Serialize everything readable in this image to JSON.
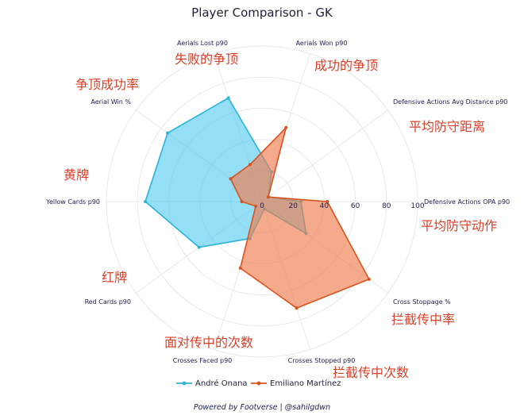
{
  "chart_data": {
    "type": "radar",
    "title": "Player Comparison - GK",
    "axes": [
      "Defensive Actions OPA p90",
      "Defensive Actions Avg Distance p90",
      "Aerials Won p90",
      "Aerials Lost p90",
      "Aerial Win %",
      "Yellow Cards p90",
      "Red Cards p90",
      "Crosses Faced p90",
      "Crosses Stopped p90",
      "Cross Stoppage %"
    ],
    "axis_annotations": [
      "平均防守动作",
      "平均防守距离",
      "成功的争顶",
      "失败的争顶",
      "争顶成功率",
      "黄牌",
      "红牌",
      "面对传中的次数",
      "拦截传中次数",
      "拦截传中率"
    ],
    "radial_ticks": [
      0,
      20,
      40,
      60,
      80,
      100
    ],
    "rlim": [
      0,
      100
    ],
    "grid": true,
    "series": [
      {
        "name": "André Onana",
        "color": "#2ab4d6",
        "fill": "#4cc8f0",
        "values": [
          25,
          5,
          20,
          70,
          75,
          75,
          50,
          25,
          5,
          35
        ]
      },
      {
        "name": "Emiliano Martínez",
        "color": "#d9531e",
        "fill": "#f07d4f",
        "values": [
          42,
          5,
          50,
          25,
          25,
          13,
          5,
          45,
          72,
          85
        ]
      }
    ],
    "legend": {
      "placement": "bottom-center",
      "entries": [
        "André Onana",
        "Emiliano Martínez"
      ]
    },
    "footer": "Powered by Footverse | @sahilgdwn"
  }
}
